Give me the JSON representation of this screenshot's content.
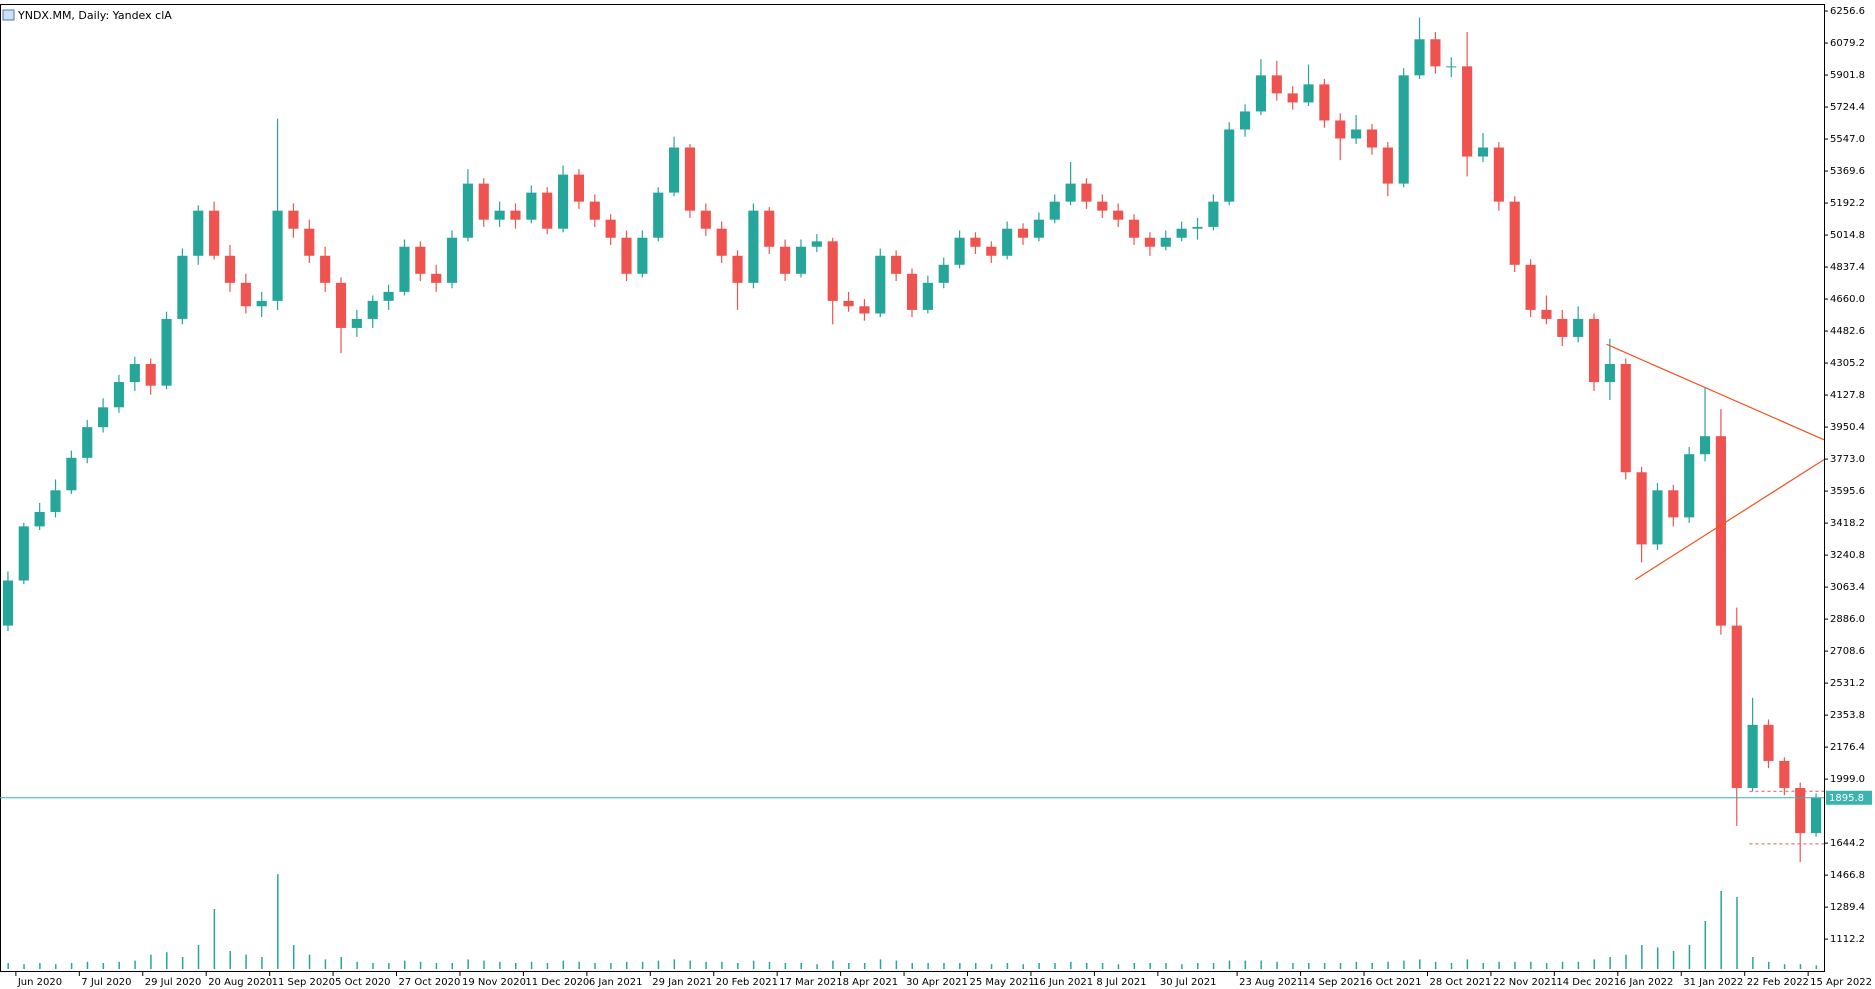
{
  "chart_data": {
    "type": "candlestick",
    "title": "YNDX.MM, Daily:  Yandex clA",
    "up_color": "#26a69a",
    "down_color": "#ef5350",
    "volume_color": "#26a69a",
    "trend_color": "#f4511e",
    "ylim": [
      930,
      6290
    ],
    "yticks": [
      {
        "value": 6256.6,
        "label": "6256.6"
      },
      {
        "value": 6079.2,
        "label": "6079.2"
      },
      {
        "value": 5901.8,
        "label": "5901.8"
      },
      {
        "value": 5724.4,
        "label": "5724.4"
      },
      {
        "value": 5547.0,
        "label": "5547.0"
      },
      {
        "value": 5369.6,
        "label": "5369.6"
      },
      {
        "value": 5192.2,
        "label": "5192.2"
      },
      {
        "value": 5014.8,
        "label": "5014.8"
      },
      {
        "value": 4837.4,
        "label": "4837.4"
      },
      {
        "value": 4660.0,
        "label": "4660.0"
      },
      {
        "value": 4482.6,
        "label": "4482.6"
      },
      {
        "value": 4305.2,
        "label": "4305.2"
      },
      {
        "value": 4127.8,
        "label": "4127.8"
      },
      {
        "value": 3950.4,
        "label": "3950.4"
      },
      {
        "value": 3773.0,
        "label": "3773.0"
      },
      {
        "value": 3595.6,
        "label": "3595.6"
      },
      {
        "value": 3418.2,
        "label": "3418.2"
      },
      {
        "value": 3240.8,
        "label": "3240.8"
      },
      {
        "value": 3063.4,
        "label": "3063.4"
      },
      {
        "value": 2886.0,
        "label": "2886.0"
      },
      {
        "value": 2708.6,
        "label": "2708.6"
      },
      {
        "value": 2531.2,
        "label": "2531.2"
      },
      {
        "value": 2353.8,
        "label": "2353.8"
      },
      {
        "value": 2176.4,
        "label": "2176.4"
      },
      {
        "value": 1999.0,
        "label": "1999.0"
      },
      {
        "value": 1644.2,
        "label": "1644.2"
      },
      {
        "value": 1466.8,
        "label": "1466.8"
      },
      {
        "value": 1289.4,
        "label": "1289.4"
      },
      {
        "value": 1112.2,
        "label": "1112.2"
      }
    ],
    "xlim": [
      0,
      115
    ],
    "xticks": [
      {
        "value": 1,
        "label": "Jun 2020"
      },
      {
        "value": 5,
        "label": "7 Jul 2020"
      },
      {
        "value": 9,
        "label": "29 Jul 2020"
      },
      {
        "value": 13,
        "label": "20 Aug 2020"
      },
      {
        "value": 17,
        "label": "11 Sep 2020"
      },
      {
        "value": 21,
        "label": "5 Oct 2020"
      },
      {
        "value": 25,
        "label": "27 Oct 2020"
      },
      {
        "value": 29,
        "label": "19 Nov 2020"
      },
      {
        "value": 33,
        "label": "11 Dec 2020"
      },
      {
        "value": 37,
        "label": "6 Jan 2021"
      },
      {
        "value": 41,
        "label": "29 Jan 2021"
      },
      {
        "value": 45,
        "label": "20 Feb 2021"
      },
      {
        "value": 49,
        "label": "17 Mar 2021"
      },
      {
        "value": 53,
        "label": "8 Apr 2021"
      },
      {
        "value": 57,
        "label": "30 Apr 2021"
      },
      {
        "value": 61,
        "label": "25 May 2021"
      },
      {
        "value": 65,
        "label": "16 Jun 2021"
      },
      {
        "value": 69,
        "label": "8 Jul 2021"
      },
      {
        "value": 73,
        "label": "30 Jul 2021"
      },
      {
        "value": 78,
        "label": "23 Aug 2021"
      },
      {
        "value": 82,
        "label": "14 Sep 2021"
      },
      {
        "value": 86,
        "label": "6 Oct 2021"
      },
      {
        "value": 90,
        "label": "28 Oct 2021"
      },
      {
        "value": 94,
        "label": "22 Nov 2021"
      },
      {
        "value": 98,
        "label": "14 Dec 2021"
      },
      {
        "value": 102,
        "label": "6 Jan 2022"
      },
      {
        "value": 106,
        "label": "31 Jan 2022"
      },
      {
        "value": 110,
        "label": "22 Feb 2022"
      },
      {
        "value": 114,
        "label": "15 Apr 2022"
      }
    ],
    "ohlc": [
      [
        2850,
        3150,
        2820,
        3100
      ],
      [
        3100,
        3420,
        3080,
        3400
      ],
      [
        3400,
        3530,
        3380,
        3480
      ],
      [
        3480,
        3660,
        3450,
        3600
      ],
      [
        3600,
        3820,
        3580,
        3780
      ],
      [
        3780,
        3990,
        3750,
        3950
      ],
      [
        3950,
        4110,
        3920,
        4060
      ],
      [
        4060,
        4240,
        4030,
        4200
      ],
      [
        4200,
        4340,
        4150,
        4300
      ],
      [
        4300,
        4330,
        4130,
        4180
      ],
      [
        4180,
        4590,
        4160,
        4550
      ],
      [
        4550,
        4940,
        4520,
        4900
      ],
      [
        4900,
        5180,
        4850,
        5150
      ],
      [
        5150,
        5200,
        4880,
        4900
      ],
      [
        4900,
        4960,
        4700,
        4750
      ],
      [
        4750,
        4800,
        4580,
        4620
      ],
      [
        4620,
        4700,
        4560,
        4650
      ],
      [
        4650,
        5660,
        4600,
        5150
      ],
      [
        5150,
        5190,
        5000,
        5050
      ],
      [
        5050,
        5100,
        4860,
        4900
      ],
      [
        4900,
        4950,
        4700,
        4750
      ],
      [
        4750,
        4780,
        4360,
        4500
      ],
      [
        4500,
        4600,
        4450,
        4550
      ],
      [
        4550,
        4680,
        4500,
        4650
      ],
      [
        4650,
        4740,
        4600,
        4700
      ],
      [
        4700,
        4990,
        4680,
        4950
      ],
      [
        4950,
        4980,
        4760,
        4800
      ],
      [
        4800,
        4850,
        4700,
        4750
      ],
      [
        4750,
        5040,
        4720,
        5000
      ],
      [
        5000,
        5380,
        4980,
        5300
      ],
      [
        5300,
        5330,
        5060,
        5100
      ],
      [
        5100,
        5200,
        5060,
        5150
      ],
      [
        5150,
        5190,
        5050,
        5100
      ],
      [
        5100,
        5290,
        5080,
        5250
      ],
      [
        5250,
        5280,
        5020,
        5050
      ],
      [
        5050,
        5400,
        5030,
        5350
      ],
      [
        5350,
        5380,
        5160,
        5200
      ],
      [
        5200,
        5240,
        5060,
        5100
      ],
      [
        5100,
        5130,
        4960,
        5000
      ],
      [
        5000,
        5040,
        4760,
        4800
      ],
      [
        4800,
        5040,
        4780,
        5000
      ],
      [
        5000,
        5280,
        4980,
        5250
      ],
      [
        5250,
        5560,
        5230,
        5500
      ],
      [
        5500,
        5520,
        5110,
        5150
      ],
      [
        5150,
        5190,
        5010,
        5050
      ],
      [
        5050,
        5090,
        4860,
        4900
      ],
      [
        4900,
        4930,
        4600,
        4750
      ],
      [
        4750,
        5190,
        4720,
        5150
      ],
      [
        5150,
        5170,
        4910,
        4950
      ],
      [
        4950,
        4990,
        4760,
        4800
      ],
      [
        4800,
        4990,
        4780,
        4950
      ],
      [
        4950,
        5020,
        4920,
        4980
      ],
      [
        4980,
        5000,
        4520,
        4650
      ],
      [
        4650,
        4700,
        4590,
        4620
      ],
      [
        4620,
        4660,
        4540,
        4580
      ],
      [
        4580,
        4940,
        4560,
        4900
      ],
      [
        4900,
        4930,
        4760,
        4800
      ],
      [
        4800,
        4830,
        4560,
        4600
      ],
      [
        4600,
        4790,
        4580,
        4750
      ],
      [
        4750,
        4890,
        4720,
        4850
      ],
      [
        4850,
        5040,
        4830,
        5000
      ],
      [
        5000,
        5030,
        4910,
        4950
      ],
      [
        4950,
        4980,
        4860,
        4900
      ],
      [
        4900,
        5090,
        4880,
        5050
      ],
      [
        5050,
        5080,
        4960,
        5000
      ],
      [
        5000,
        5140,
        4980,
        5100
      ],
      [
        5100,
        5240,
        5080,
        5200
      ],
      [
        5200,
        5420,
        5180,
        5300
      ],
      [
        5300,
        5330,
        5160,
        5200
      ],
      [
        5200,
        5240,
        5110,
        5150
      ],
      [
        5150,
        5190,
        5060,
        5100
      ],
      [
        5100,
        5130,
        4960,
        5000
      ],
      [
        5000,
        5030,
        4900,
        4950
      ],
      [
        4950,
        5040,
        4930,
        5000
      ],
      [
        5000,
        5090,
        4980,
        5050
      ],
      [
        5050,
        5110,
        4990,
        5060
      ],
      [
        5060,
        5240,
        5040,
        5200
      ],
      [
        5200,
        5640,
        5180,
        5600
      ],
      [
        5600,
        5740,
        5560,
        5700
      ],
      [
        5700,
        5990,
        5680,
        5900
      ],
      [
        5900,
        5980,
        5760,
        5800
      ],
      [
        5800,
        5840,
        5710,
        5750
      ],
      [
        5750,
        5960,
        5730,
        5850
      ],
      [
        5850,
        5880,
        5610,
        5650
      ],
      [
        5650,
        5690,
        5430,
        5550
      ],
      [
        5550,
        5680,
        5520,
        5600
      ],
      [
        5600,
        5630,
        5460,
        5500
      ],
      [
        5500,
        5530,
        5230,
        5300
      ],
      [
        5300,
        5940,
        5280,
        5900
      ],
      [
        5900,
        6220,
        5880,
        6100
      ],
      [
        6100,
        6140,
        5910,
        5950
      ],
      [
        5950,
        6000,
        5890,
        5950
      ],
      [
        5950,
        6140,
        5340,
        5450
      ],
      [
        5450,
        5580,
        5420,
        5500
      ],
      [
        5500,
        5530,
        5150,
        5200
      ],
      [
        5200,
        5230,
        4810,
        4850
      ],
      [
        4850,
        4880,
        4560,
        4600
      ],
      [
        4600,
        4680,
        4520,
        4550
      ],
      [
        4550,
        4600,
        4400,
        4450
      ],
      [
        4450,
        4620,
        4420,
        4550
      ],
      [
        4550,
        4580,
        4150,
        4200
      ],
      [
        4200,
        4440,
        4100,
        4300
      ],
      [
        4300,
        4330,
        3660,
        3700
      ],
      [
        3700,
        3730,
        3200,
        3300
      ],
      [
        3300,
        3640,
        3270,
        3600
      ],
      [
        3600,
        3630,
        3400,
        3450
      ],
      [
        3450,
        3840,
        3420,
        3800
      ],
      [
        3800,
        4170,
        3760,
        3900
      ],
      [
        3900,
        4050,
        2800,
        2850
      ],
      [
        2850,
        2950,
        1740,
        1950
      ],
      [
        1950,
        2450,
        1930,
        2300
      ],
      [
        2300,
        2330,
        2060,
        2100
      ],
      [
        2100,
        2120,
        1910,
        1950
      ],
      [
        1950,
        1980,
        1540,
        1700
      ],
      [
        1700,
        1920,
        1680,
        1895.8
      ]
    ],
    "vlim": [
      0,
      100
    ],
    "volume": [
      5,
      4,
      5,
      4,
      5,
      6,
      5,
      6,
      7,
      12,
      14,
      10,
      20,
      50,
      15,
      12,
      10,
      79,
      20,
      12,
      8,
      10,
      6,
      5,
      5,
      7,
      6,
      5,
      5,
      8,
      7,
      6,
      5,
      6,
      5,
      7,
      6,
      5,
      5,
      6,
      6,
      7,
      8,
      7,
      6,
      6,
      5,
      7,
      6,
      5,
      5,
      4,
      7,
      5,
      5,
      8,
      7,
      5,
      5,
      5,
      5,
      5,
      4,
      5,
      4,
      5,
      5,
      6,
      5,
      5,
      4,
      5,
      5,
      5,
      4,
      5,
      5,
      7,
      7,
      7,
      6,
      5,
      5,
      5,
      5,
      6,
      5,
      6,
      7,
      8,
      6,
      5,
      8,
      5,
      6,
      6,
      6,
      5,
      6,
      6,
      8,
      10,
      12,
      20,
      18,
      15,
      20,
      40,
      65,
      60,
      10,
      6,
      4,
      4,
      3
    ],
    "price_line": 1895.8,
    "trendlines": [
      {
        "x": [
          101.3,
          115
        ],
        "y": [
          4409,
          3880
        ]
      },
      {
        "x": [
          103.1,
          115
        ],
        "y": [
          3105,
          3770
        ]
      }
    ],
    "dashed_levels": {
      "x": [
        110.3,
        115
      ],
      "values": [
        1932,
        1640
      ]
    }
  }
}
